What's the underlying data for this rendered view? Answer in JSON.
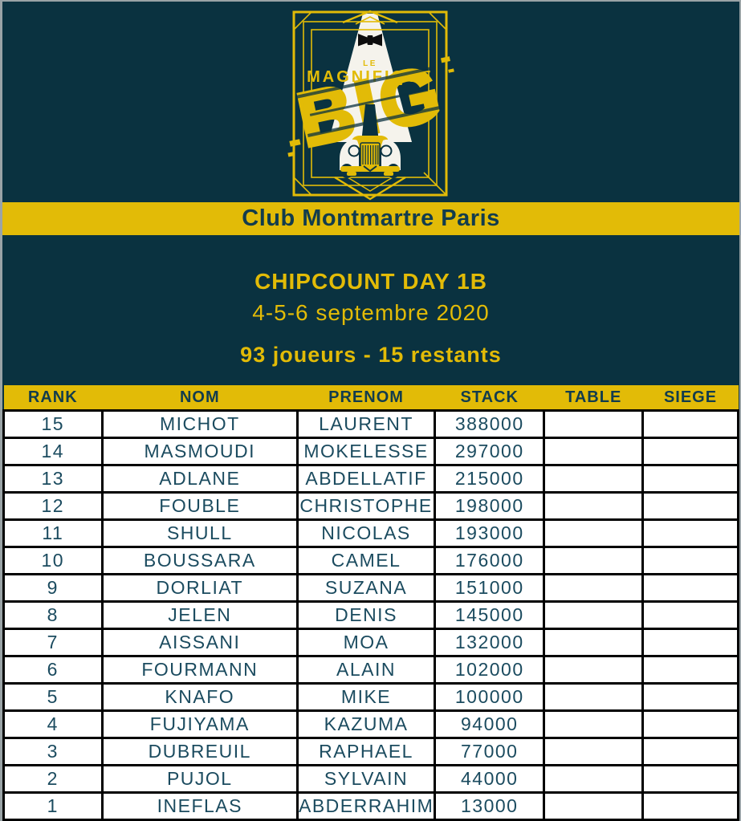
{
  "colors": {
    "background": "#0a3240",
    "accent_yellow": "#e2bb07",
    "beam_white": "#f5f3ec",
    "row_text_teal": "#1b4b5f",
    "header_text_teal": "#123c4d",
    "table_border_black": "#000000",
    "page_edge_gray": "#9aa3a6"
  },
  "logo": {
    "le": "LE",
    "magnifique": "MAGNIFIQUE",
    "big": "BIG",
    "icons": [
      "bow-tie-icon",
      "light-beam",
      "art-deco-frame",
      "vintage-car-icon"
    ]
  },
  "banner": {
    "title": "Club Montmartre Paris"
  },
  "info": {
    "title": "CHIPCOUNT DAY 1B",
    "date": "4-5-6 septembre 2020",
    "players": "93 joueurs - 15 restants"
  },
  "table": {
    "headers": [
      "RANK",
      "NOM",
      "PRENOM",
      "STACK",
      "TABLE",
      "SIEGE"
    ],
    "col_widths_pct": [
      13.4,
      26.6,
      18.7,
      14.9,
      13.4,
      13.0
    ],
    "rows": [
      {
        "rank": "15",
        "nom": "MICHOT",
        "prenom": "LAURENT",
        "stack": "388000",
        "table": "",
        "siege": ""
      },
      {
        "rank": "14",
        "nom": "MASMOUDI",
        "prenom": "MOKELESSE",
        "stack": "297000",
        "table": "",
        "siege": ""
      },
      {
        "rank": "13",
        "nom": "ADLANE",
        "prenom": "ABDELLATIF",
        "stack": "215000",
        "table": "",
        "siege": ""
      },
      {
        "rank": "12",
        "nom": "FOUBLE",
        "prenom": "CHRISTOPHE",
        "stack": "198000",
        "table": "",
        "siege": ""
      },
      {
        "rank": "11",
        "nom": "SHULL",
        "prenom": "NICOLAS",
        "stack": "193000",
        "table": "",
        "siege": ""
      },
      {
        "rank": "10",
        "nom": "BOUSSARA",
        "prenom": "CAMEL",
        "stack": "176000",
        "table": "",
        "siege": ""
      },
      {
        "rank": "9",
        "nom": "DORLIAT",
        "prenom": "SUZANA",
        "stack": "151000",
        "table": "",
        "siege": ""
      },
      {
        "rank": "8",
        "nom": "JELEN",
        "prenom": "DENIS",
        "stack": "145000",
        "table": "",
        "siege": ""
      },
      {
        "rank": "7",
        "nom": "AISSANI",
        "prenom": "MOA",
        "stack": "132000",
        "table": "",
        "siege": ""
      },
      {
        "rank": "6",
        "nom": "FOURMANN",
        "prenom": "ALAIN",
        "stack": "102000",
        "table": "",
        "siege": ""
      },
      {
        "rank": "5",
        "nom": "KNAFO",
        "prenom": "MIKE",
        "stack": "100000",
        "table": "",
        "siege": ""
      },
      {
        "rank": "4",
        "nom": "FUJIYAMA",
        "prenom": "KAZUMA",
        "stack": "94000",
        "table": "",
        "siege": ""
      },
      {
        "rank": "3",
        "nom": "DUBREUIL",
        "prenom": "RAPHAEL",
        "stack": "77000",
        "table": "",
        "siege": ""
      },
      {
        "rank": "2",
        "nom": "PUJOL",
        "prenom": "SYLVAIN",
        "stack": "44000",
        "table": "",
        "siege": ""
      },
      {
        "rank": "1",
        "nom": "INEFLAS",
        "prenom": "ABDERRAHIM",
        "stack": "13000",
        "table": "",
        "siege": ""
      }
    ]
  }
}
